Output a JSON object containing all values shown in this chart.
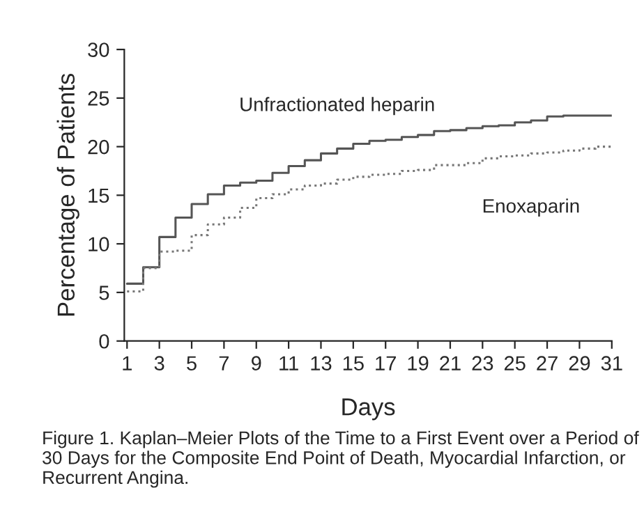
{
  "chart_data": {
    "type": "step",
    "xlabel": "Days",
    "ylabel": "Percentage of Patients",
    "x": [
      1,
      2,
      3,
      4,
      5,
      6,
      7,
      8,
      9,
      10,
      11,
      12,
      13,
      14,
      15,
      16,
      17,
      18,
      19,
      20,
      21,
      22,
      23,
      24,
      25,
      26,
      27,
      28,
      29,
      30,
      31
    ],
    "series": [
      {
        "name": "Unfractionated heparin",
        "color": "#555555",
        "line_style": "solid",
        "values": [
          5.9,
          7.6,
          10.7,
          12.7,
          14.1,
          15.1,
          16.0,
          16.3,
          16.5,
          17.3,
          18.0,
          18.6,
          19.3,
          19.8,
          20.3,
          20.6,
          20.7,
          21.0,
          21.2,
          21.6,
          21.7,
          21.9,
          22.1,
          22.2,
          22.5,
          22.7,
          23.1,
          23.2,
          23.2,
          23.2,
          23.2
        ]
      },
      {
        "name": "Enoxaparin",
        "color": "#777777",
        "line_style": "dotted",
        "values": [
          5.1,
          7.5,
          9.2,
          9.3,
          10.9,
          12.0,
          12.7,
          13.7,
          14.7,
          15.1,
          15.6,
          16.0,
          16.2,
          16.6,
          16.9,
          17.1,
          17.2,
          17.5,
          17.6,
          18.1,
          18.1,
          18.3,
          18.8,
          19.0,
          19.1,
          19.3,
          19.4,
          19.6,
          19.8,
          20.0,
          20.0
        ]
      }
    ],
    "xlim": [
      0.83,
      31
    ],
    "xticks": [
      1,
      3,
      5,
      7,
      9,
      11,
      13,
      15,
      17,
      19,
      21,
      23,
      25,
      27,
      29,
      31
    ],
    "ylim": [
      0,
      30
    ],
    "yticks": [
      0,
      5,
      10,
      15,
      20,
      25,
      30
    ],
    "grid": false,
    "legend": false,
    "annotations": [
      "Figure 1. Kaplan–Meier Plots of the Time to a First Event over a Period of 30 Days for the Composite End Point of Death, Myocardial Infarction, or Recurrent Angina."
    ]
  }
}
